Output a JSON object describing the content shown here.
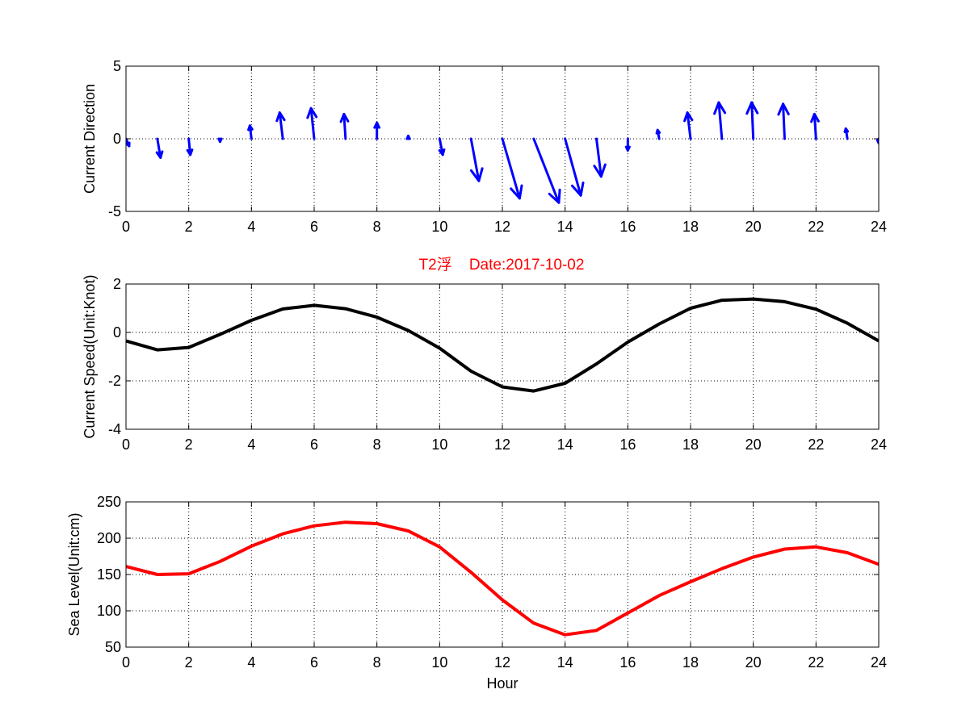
{
  "title": "T2浮    Date:2017-10-02",
  "colors": {
    "direction": "#0000ff",
    "speed": "#000000",
    "level": "#ff0000",
    "title": "#ff0000"
  },
  "chart_data": [
    {
      "type": "quiver",
      "ylabel": "Current Direction",
      "xlim": [
        0,
        24
      ],
      "ylim": [
        -5,
        5
      ],
      "grid": true,
      "xticks": [
        0,
        2,
        4,
        6,
        8,
        10,
        12,
        14,
        16,
        18,
        20,
        22,
        24
      ],
      "yticks": [
        -5,
        0,
        5
      ],
      "x": [
        0,
        1,
        2,
        3,
        4,
        5,
        6,
        7,
        8,
        9,
        10,
        11,
        12,
        13,
        14,
        15,
        16,
        17,
        18,
        19,
        20,
        21,
        22,
        23,
        24
      ],
      "u": [
        0.1,
        0.1,
        0.05,
        0.0,
        -0.05,
        -0.1,
        -0.1,
        -0.05,
        0.0,
        0.0,
        0.1,
        0.25,
        0.55,
        0.8,
        0.5,
        0.15,
        0.0,
        -0.05,
        -0.1,
        -0.1,
        -0.05,
        -0.05,
        -0.05,
        -0.05,
        0.0
      ],
      "v": [
        -0.5,
        -1.3,
        -1.1,
        -0.2,
        0.9,
        1.8,
        2.1,
        1.7,
        1.1,
        0.2,
        -1.1,
        -2.9,
        -4.1,
        -4.4,
        -3.9,
        -2.6,
        -0.8,
        0.6,
        1.8,
        2.5,
        2.5,
        2.4,
        1.7,
        0.7,
        -0.3
      ]
    },
    {
      "type": "line",
      "ylabel": "Current Speed(Unit:Knot)",
      "xlim": [
        0,
        24
      ],
      "ylim": [
        -4,
        2
      ],
      "grid": true,
      "xticks": [
        0,
        2,
        4,
        6,
        8,
        10,
        12,
        14,
        16,
        18,
        20,
        22,
        24
      ],
      "yticks": [
        -4,
        -2,
        0,
        2
      ],
      "x": [
        0,
        1,
        2,
        3,
        4,
        5,
        6,
        7,
        8,
        9,
        10,
        11,
        12,
        13,
        14,
        15,
        16,
        17,
        18,
        19,
        20,
        21,
        22,
        23,
        24
      ],
      "y": [
        -0.35,
        -0.72,
        -0.62,
        -0.08,
        0.5,
        0.97,
        1.12,
        0.98,
        0.63,
        0.08,
        -0.65,
        -1.6,
        -2.25,
        -2.42,
        -2.1,
        -1.3,
        -0.4,
        0.35,
        1.0,
        1.33,
        1.38,
        1.27,
        0.96,
        0.38,
        -0.35
      ]
    },
    {
      "type": "line",
      "ylabel": "Sea Level(Unit:cm)",
      "xlabel": "Hour",
      "xlim": [
        0,
        24
      ],
      "ylim": [
        50,
        250
      ],
      "grid": true,
      "xticks": [
        0,
        2,
        4,
        6,
        8,
        10,
        12,
        14,
        16,
        18,
        20,
        22,
        24
      ],
      "yticks": [
        50,
        100,
        150,
        200,
        250
      ],
      "x": [
        0,
        1,
        2,
        3,
        4,
        5,
        6,
        7,
        8,
        9,
        10,
        11,
        12,
        13,
        14,
        15,
        16,
        17,
        18,
        19,
        20,
        21,
        22,
        23,
        24
      ],
      "y": [
        161,
        150,
        151,
        168,
        189,
        206,
        217,
        222,
        220,
        210,
        188,
        153,
        115,
        83,
        67,
        73,
        97,
        121,
        140,
        158,
        174,
        185,
        188,
        180,
        164
      ]
    }
  ]
}
